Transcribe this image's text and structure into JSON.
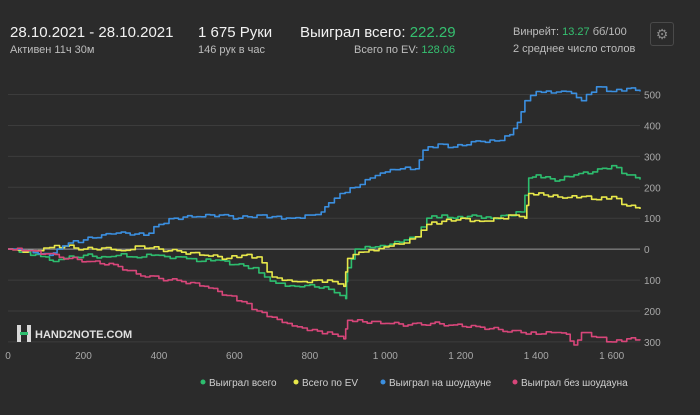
{
  "header": {
    "date_range": "28.10.2021 - 28.10.2021",
    "active_time": "Активен 11ч 30м",
    "hands": "1 675 Руки",
    "hands_per_hour": "146 рук в час",
    "won_total_label": "Выиграл всего:",
    "won_total_value": "222.29",
    "ev_total_label": "Всего по EV:",
    "ev_total_value": "128.06",
    "winrate_label": "Винрейт:",
    "winrate_value": "13.27",
    "winrate_unit": "бб/100",
    "avg_tables": "2 среднее число столов"
  },
  "icons": {
    "settings": "gear-icon"
  },
  "logo": {
    "text": "HAND2NOTE.COM"
  },
  "colors": {
    "background": "#2b2b2b",
    "grid": "#3c3c3c",
    "zero_line": "#9a9a9a",
    "won_total": "#2dbd6e",
    "ev": "#e8e84a",
    "showdown": "#3b8fe0",
    "non_showdown": "#d8467a"
  },
  "chart_data": {
    "type": "line",
    "xlim": [
      0,
      1675
    ],
    "ylim": [
      -310,
      560
    ],
    "y_inverted_labels": "negative values shown without minus sign",
    "x_ticks": [
      0,
      200,
      400,
      600,
      800,
      1000,
      1200,
      1400,
      1600
    ],
    "x_tick_labels": [
      "0",
      "200",
      "400",
      "600",
      "800",
      "1 000",
      "1 200",
      "1 400",
      "1 600"
    ],
    "y_ticks": [
      500,
      400,
      300,
      200,
      100,
      0,
      -100,
      -200,
      -300
    ],
    "y_tick_labels": [
      "500",
      "400",
      "300",
      "200",
      "100",
      "0",
      "100",
      "200",
      "300"
    ],
    "grid": true,
    "legend_position": "bottom-right",
    "series": [
      {
        "name": "Выиграл всего",
        "color": "#2dbd6e",
        "points": [
          [
            0,
            0
          ],
          [
            30,
            -10
          ],
          [
            60,
            -20
          ],
          [
            100,
            -25
          ],
          [
            120,
            -40
          ],
          [
            150,
            -30
          ],
          [
            200,
            -20
          ],
          [
            260,
            -25
          ],
          [
            300,
            -15
          ],
          [
            330,
            -25
          ],
          [
            380,
            -20
          ],
          [
            400,
            -20
          ],
          [
            430,
            -30
          ],
          [
            460,
            -25
          ],
          [
            500,
            -40
          ],
          [
            550,
            -35
          ],
          [
            600,
            -50
          ],
          [
            650,
            -60
          ],
          [
            680,
            -90
          ],
          [
            710,
            -110
          ],
          [
            760,
            -120
          ],
          [
            800,
            -115
          ],
          [
            850,
            -130
          ],
          [
            880,
            -150
          ],
          [
            895,
            -160
          ],
          [
            900,
            -60
          ],
          [
            920,
            0
          ],
          [
            960,
            5
          ],
          [
            1000,
            10
          ],
          [
            1050,
            30
          ],
          [
            1080,
            40
          ],
          [
            1110,
            100
          ],
          [
            1150,
            110
          ],
          [
            1180,
            100
          ],
          [
            1230,
            110
          ],
          [
            1280,
            100
          ],
          [
            1320,
            110
          ],
          [
            1360,
            120
          ],
          [
            1380,
            230
          ],
          [
            1400,
            240
          ],
          [
            1450,
            220
          ],
          [
            1500,
            240
          ],
          [
            1550,
            250
          ],
          [
            1600,
            270
          ],
          [
            1640,
            240
          ],
          [
            1675,
            225
          ]
        ]
      },
      {
        "name": "Всего по EV",
        "color": "#e8e84a",
        "points": [
          [
            0,
            0
          ],
          [
            40,
            -10
          ],
          [
            80,
            -5
          ],
          [
            110,
            5
          ],
          [
            150,
            10
          ],
          [
            200,
            0
          ],
          [
            260,
            5
          ],
          [
            300,
            -5
          ],
          [
            350,
            10
          ],
          [
            400,
            0
          ],
          [
            460,
            -10
          ],
          [
            520,
            -20
          ],
          [
            580,
            -30
          ],
          [
            620,
            -20
          ],
          [
            660,
            -25
          ],
          [
            700,
            -90
          ],
          [
            740,
            -100
          ],
          [
            780,
            -105
          ],
          [
            820,
            -100
          ],
          [
            860,
            -105
          ],
          [
            890,
            -120
          ],
          [
            900,
            -30
          ],
          [
            930,
            -10
          ],
          [
            970,
            -5
          ],
          [
            1010,
            10
          ],
          [
            1050,
            20
          ],
          [
            1080,
            40
          ],
          [
            1110,
            80
          ],
          [
            1150,
            90
          ],
          [
            1200,
            100
          ],
          [
            1250,
            90
          ],
          [
            1300,
            100
          ],
          [
            1340,
            110
          ],
          [
            1370,
            100
          ],
          [
            1380,
            180
          ],
          [
            1420,
            175
          ],
          [
            1470,
            165
          ],
          [
            1520,
            170
          ],
          [
            1560,
            160
          ],
          [
            1600,
            170
          ],
          [
            1640,
            140
          ],
          [
            1675,
            130
          ]
        ]
      },
      {
        "name": "Выиграл на шоудауне",
        "color": "#3b8fe0",
        "points": [
          [
            0,
            0
          ],
          [
            40,
            -5
          ],
          [
            80,
            -15
          ],
          [
            110,
            -20
          ],
          [
            130,
            0
          ],
          [
            160,
            20
          ],
          [
            200,
            30
          ],
          [
            260,
            50
          ],
          [
            300,
            55
          ],
          [
            360,
            45
          ],
          [
            400,
            80
          ],
          [
            440,
            100
          ],
          [
            500,
            105
          ],
          [
            560,
            110
          ],
          [
            610,
            100
          ],
          [
            660,
            110
          ],
          [
            700,
            105
          ],
          [
            750,
            100
          ],
          [
            800,
            110
          ],
          [
            830,
            120
          ],
          [
            850,
            150
          ],
          [
            880,
            180
          ],
          [
            920,
            200
          ],
          [
            960,
            230
          ],
          [
            1000,
            250
          ],
          [
            1040,
            260
          ],
          [
            1080,
            260
          ],
          [
            1100,
            320
          ],
          [
            1140,
            340
          ],
          [
            1180,
            330
          ],
          [
            1240,
            350
          ],
          [
            1290,
            350
          ],
          [
            1330,
            370
          ],
          [
            1350,
            410
          ],
          [
            1370,
            480
          ],
          [
            1400,
            510
          ],
          [
            1440,
            505
          ],
          [
            1480,
            510
          ],
          [
            1520,
            480
          ],
          [
            1560,
            525
          ],
          [
            1600,
            510
          ],
          [
            1640,
            520
          ],
          [
            1675,
            510
          ]
        ]
      },
      {
        "name": "Выиграл без шоудауна",
        "color": "#d8467a",
        "points": [
          [
            0,
            0
          ],
          [
            50,
            -5
          ],
          [
            100,
            -15
          ],
          [
            160,
            -30
          ],
          [
            220,
            -40
          ],
          [
            280,
            -50
          ],
          [
            340,
            -80
          ],
          [
            400,
            -95
          ],
          [
            460,
            -105
          ],
          [
            520,
            -120
          ],
          [
            580,
            -150
          ],
          [
            620,
            -170
          ],
          [
            660,
            -200
          ],
          [
            700,
            -220
          ],
          [
            740,
            -240
          ],
          [
            780,
            -255
          ],
          [
            820,
            -265
          ],
          [
            860,
            -275
          ],
          [
            890,
            -290
          ],
          [
            900,
            -230
          ],
          [
            940,
            -235
          ],
          [
            1000,
            -240
          ],
          [
            1060,
            -245
          ],
          [
            1120,
            -240
          ],
          [
            1180,
            -245
          ],
          [
            1240,
            -250
          ],
          [
            1300,
            -260
          ],
          [
            1360,
            -270
          ],
          [
            1400,
            -275
          ],
          [
            1440,
            -270
          ],
          [
            1480,
            -275
          ],
          [
            1500,
            -310
          ],
          [
            1520,
            -270
          ],
          [
            1560,
            -285
          ],
          [
            1600,
            -300
          ],
          [
            1640,
            -290
          ],
          [
            1675,
            -295
          ]
        ]
      }
    ]
  }
}
